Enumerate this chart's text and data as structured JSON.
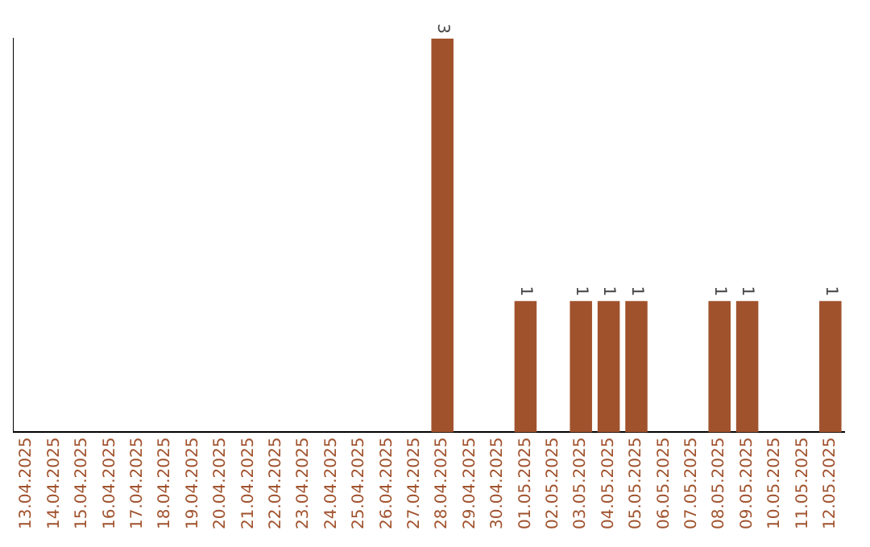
{
  "chart_data": {
    "type": "bar",
    "categories": [
      "13.04.2025",
      "14.04.2025",
      "15.04.2025",
      "16.04.2025",
      "17.04.2025",
      "18.04.2025",
      "19.04.2025",
      "20.04.2025",
      "21.04.2025",
      "22.04.2025",
      "23.04.2025",
      "24.04.2025",
      "25.04.2025",
      "26.04.2025",
      "27.04.2025",
      "28.04.2025",
      "29.04.2025",
      "30.04.2025",
      "01.05.2025",
      "02.05.2025",
      "03.05.2025",
      "04.05.2025",
      "05.05.2025",
      "06.05.2025",
      "07.05.2025",
      "08.05.2025",
      "09.05.2025",
      "10.05.2025",
      "11.05.2025",
      "12.05.2025"
    ],
    "values": [
      null,
      null,
      null,
      null,
      null,
      null,
      null,
      null,
      null,
      null,
      null,
      null,
      null,
      null,
      null,
      3,
      null,
      null,
      1,
      null,
      1,
      1,
      1,
      null,
      null,
      1,
      1,
      null,
      null,
      1
    ],
    "data_labels": true,
    "color": "#a0522d",
    "grid": false,
    "legend": false,
    "tick_labels": "x"
  }
}
